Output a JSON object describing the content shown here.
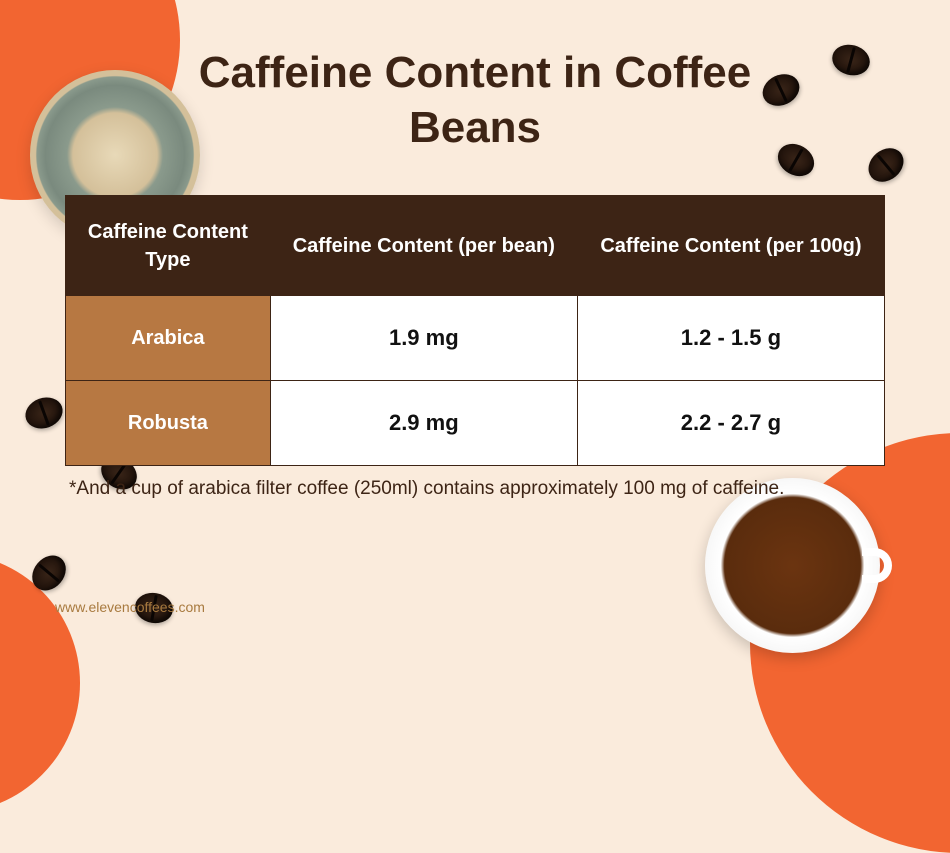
{
  "title": "Caffeine Content in Coffee Beans",
  "table": {
    "type": "table",
    "columns": [
      "Caffeine Content Type",
      "Caffeine Content (per bean)",
      "Caffeine Content (per 100g)"
    ],
    "rows": [
      {
        "label": "Arabica",
        "per_bean": "1.9 mg",
        "per_100g": "1.2 - 1.5 g"
      },
      {
        "label": "Robusta",
        "per_bean": "2.9 mg",
        "per_100g": "2.2 - 2.7 g"
      }
    ],
    "header_bg": "#3d2415",
    "header_text_color": "#ffffff",
    "row_label_bg": "#b77842",
    "row_label_text_color": "#ffffff",
    "data_cell_bg": "#ffffff",
    "data_cell_text_color": "#111111",
    "border_color": "#3d2415",
    "header_fontsize": 20,
    "data_fontsize": 22
  },
  "footnote": "*And a cup of arabica filter coffee (250ml) contains approximately 100 mg of caffeine.",
  "url": "www.elevencoffees.com",
  "colors": {
    "background": "#faebdc",
    "accent_orange": "#f26531",
    "title_color": "#3d2415",
    "url_color": "#a87a3f"
  },
  "title_fontsize": 44
}
